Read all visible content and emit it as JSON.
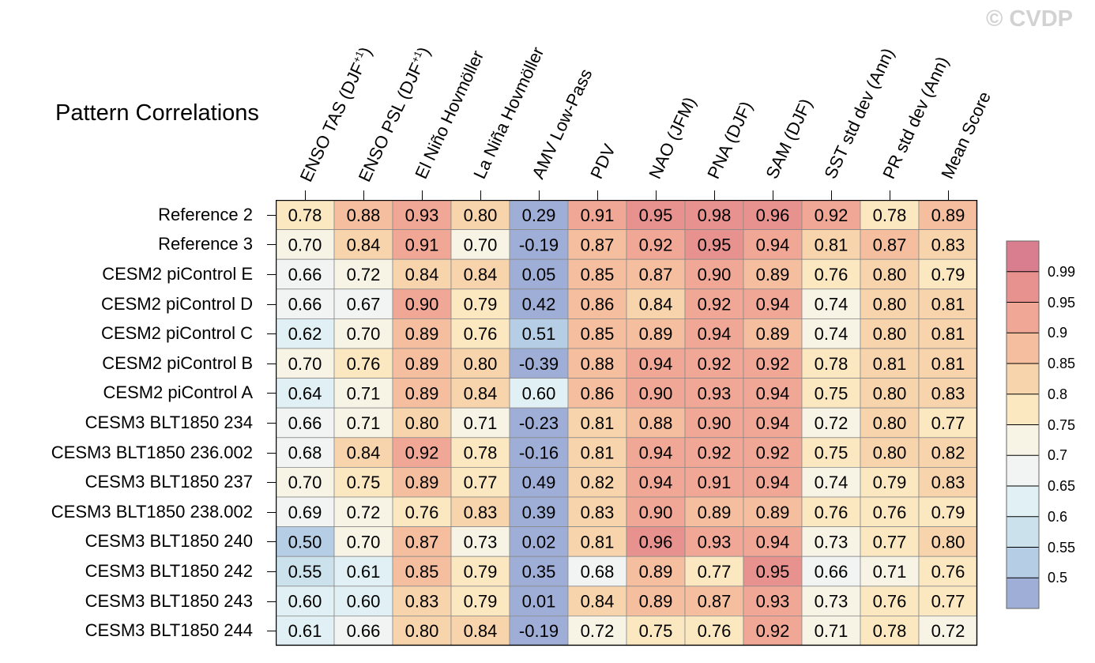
{
  "watermark": "© CVDP",
  "chart_data": {
    "type": "heatmap",
    "title": "Pattern Correlations",
    "columns": [
      "ENSO TAS (DJF+1)",
      "ENSO PSL (DJF+1)",
      "El Niño Hovmöller",
      "La Niña Hovmöller",
      "AMV Low-Pass",
      "PDV",
      "NAO (JFM)",
      "PNA (DJF)",
      "SAM (DJF)",
      "SST std dev (Ann)",
      "PR std dev (Ann)",
      "Mean Score"
    ],
    "column_labels": [
      {
        "text": "ENSO TAS (DJF",
        "sup": "+1",
        "tail": ")"
      },
      {
        "text": "ENSO PSL (DJF",
        "sup": "+1",
        "tail": ")"
      },
      {
        "text": "El Niño Hovmöller",
        "sup": "",
        "tail": ""
      },
      {
        "text": "La Niña Hovmöller",
        "sup": "",
        "tail": ""
      },
      {
        "text": "AMV Low-Pass",
        "sup": "",
        "tail": ""
      },
      {
        "text": "PDV",
        "sup": "",
        "tail": ""
      },
      {
        "text": "NAO (JFM)",
        "sup": "",
        "tail": ""
      },
      {
        "text": "PNA (DJF)",
        "sup": "",
        "tail": ""
      },
      {
        "text": "SAM (DJF)",
        "sup": "",
        "tail": ""
      },
      {
        "text": "SST std dev (Ann)",
        "sup": "",
        "tail": ""
      },
      {
        "text": "PR std dev (Ann)",
        "sup": "",
        "tail": ""
      },
      {
        "text": "Mean Score",
        "sup": "",
        "tail": ""
      }
    ],
    "rows": [
      "Reference 2",
      "Reference 3",
      "CESM2 piControl E",
      "CESM2 piControl D",
      "CESM2 piControl C",
      "CESM2 piControl B",
      "CESM2 piControl A",
      "CESM3 BLT1850 234",
      "CESM3 BLT1850 236.002",
      "CESM3 BLT1850 237",
      "CESM3 BLT1850 238.002",
      "CESM3 BLT1850 240",
      "CESM3 BLT1850 242",
      "CESM3 BLT1850 243",
      "CESM3 BLT1850 244"
    ],
    "values": [
      [
        "0.78",
        "0.88",
        "0.93",
        "0.80",
        "0.29",
        "0.91",
        "0.95",
        "0.98",
        "0.96",
        "0.92",
        "0.78",
        "0.89"
      ],
      [
        "0.70",
        "0.84",
        "0.91",
        "0.70",
        "-0.19",
        "0.87",
        "0.92",
        "0.95",
        "0.94",
        "0.81",
        "0.87",
        "0.83"
      ],
      [
        "0.66",
        "0.72",
        "0.84",
        "0.84",
        "0.05",
        "0.85",
        "0.87",
        "0.90",
        "0.89",
        "0.76",
        "0.80",
        "0.79"
      ],
      [
        "0.66",
        "0.67",
        "0.90",
        "0.79",
        "0.42",
        "0.86",
        "0.84",
        "0.92",
        "0.94",
        "0.74",
        "0.80",
        "0.81"
      ],
      [
        "0.62",
        "0.70",
        "0.89",
        "0.76",
        "0.51",
        "0.85",
        "0.89",
        "0.94",
        "0.89",
        "0.74",
        "0.80",
        "0.81"
      ],
      [
        "0.70",
        "0.76",
        "0.89",
        "0.80",
        "-0.39",
        "0.88",
        "0.94",
        "0.92",
        "0.92",
        "0.78",
        "0.81",
        "0.81"
      ],
      [
        "0.64",
        "0.71",
        "0.89",
        "0.84",
        "0.60",
        "0.86",
        "0.90",
        "0.93",
        "0.94",
        "0.75",
        "0.80",
        "0.83"
      ],
      [
        "0.66",
        "0.71",
        "0.80",
        "0.71",
        "-0.23",
        "0.81",
        "0.88",
        "0.90",
        "0.94",
        "0.72",
        "0.80",
        "0.77"
      ],
      [
        "0.68",
        "0.84",
        "0.92",
        "0.78",
        "-0.16",
        "0.81",
        "0.94",
        "0.92",
        "0.92",
        "0.75",
        "0.80",
        "0.82"
      ],
      [
        "0.70",
        "0.75",
        "0.89",
        "0.77",
        "0.49",
        "0.82",
        "0.94",
        "0.91",
        "0.94",
        "0.74",
        "0.79",
        "0.83"
      ],
      [
        "0.69",
        "0.72",
        "0.76",
        "0.83",
        "0.39",
        "0.83",
        "0.90",
        "0.89",
        "0.89",
        "0.76",
        "0.76",
        "0.79"
      ],
      [
        "0.50",
        "0.70",
        "0.87",
        "0.73",
        "0.02",
        "0.81",
        "0.96",
        "0.93",
        "0.94",
        "0.73",
        "0.77",
        "0.80"
      ],
      [
        "0.55",
        "0.61",
        "0.85",
        "0.79",
        "0.35",
        "0.68",
        "0.89",
        "0.77",
        "0.95",
        "0.66",
        "0.71",
        "0.76"
      ],
      [
        "0.60",
        "0.60",
        "0.83",
        "0.79",
        "0.01",
        "0.84",
        "0.89",
        "0.87",
        "0.93",
        "0.73",
        "0.76",
        "0.77"
      ],
      [
        "0.61",
        "0.66",
        "0.80",
        "0.84",
        "-0.19",
        "0.72",
        "0.75",
        "0.76",
        "0.92",
        "0.71",
        "0.78",
        "0.72"
      ]
    ],
    "colorbar": {
      "levels": [
        "0.99",
        "0.95",
        "0.9",
        "0.85",
        "0.8",
        "0.75",
        "0.7",
        "0.65",
        "0.6",
        "0.55",
        "0.5"
      ],
      "colors_top_to_bottom": [
        "#d87e8f",
        "#e8928f",
        "#f0a796",
        "#f5bf9f",
        "#f8d4ac",
        "#fbe7c0",
        "#f7f4e5",
        "#f1f4f2",
        "#e1f0f4",
        "#cbe1ec",
        "#b5cee5",
        "#9faed6"
      ]
    }
  }
}
